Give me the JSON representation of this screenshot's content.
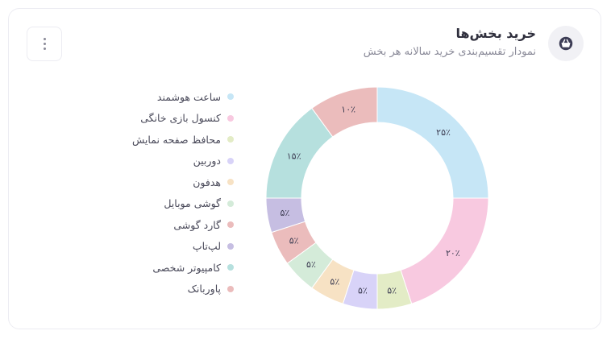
{
  "header": {
    "title": "خرید بخش‌ها",
    "subtitle": "نمودار تقسیم‌بندی خرید سالانه هر بخش",
    "icon": "shopping-basket-icon"
  },
  "menu": {
    "icon": "more-vertical-icon"
  },
  "chart_data": {
    "type": "pie",
    "donut": true,
    "title": "",
    "legend_position": "left",
    "categories": [
      "ساعت هوشمند",
      "کنسول بازی خانگی",
      "محافظ صفحه نمایش",
      "دوربین",
      "هدفون",
      "گوشی موبایل",
      "گارد گوشی",
      "لپ‌تاپ",
      "کامپیوتر شخصی",
      "پاوربانک"
    ],
    "values": [
      25,
      20,
      5,
      5,
      5,
      5,
      5,
      5,
      15,
      10
    ],
    "value_labels": [
      "۲۵٪",
      "۲۰٪",
      "۵٪",
      "۵٪",
      "۵٪",
      "۵٪",
      "۵٪",
      "۵٪",
      "۱۵٪",
      "۱۰٪"
    ],
    "colors": [
      "#c6e6f6",
      "#f8c9e0",
      "#e3ecc6",
      "#d8d3f8",
      "#f7e2c4",
      "#d4ebd9",
      "#ebbcbc",
      "#c6bee2",
      "#b6e0de",
      "#ebbcbc"
    ]
  }
}
